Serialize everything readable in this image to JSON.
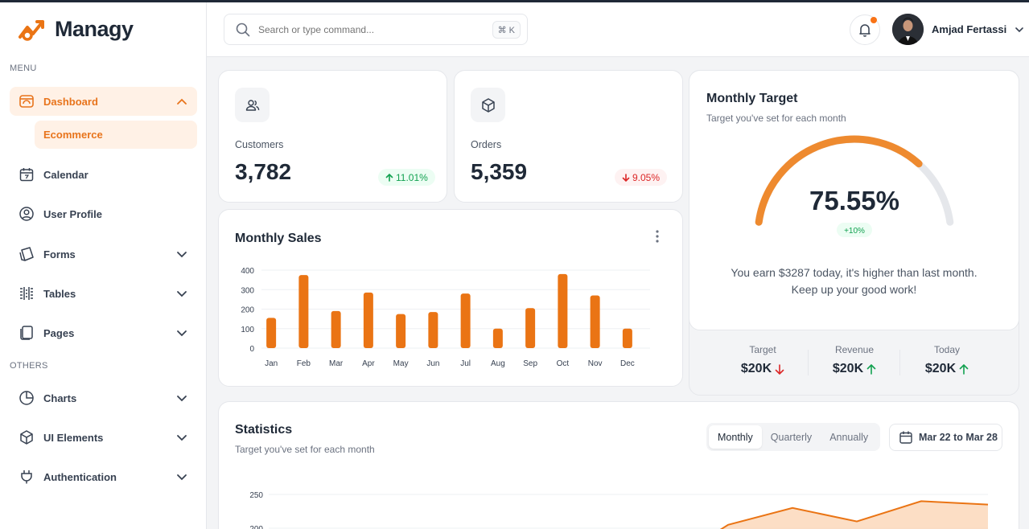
{
  "app": {
    "name": "Managy"
  },
  "sidebar": {
    "menu_label": "MENU",
    "others_label": "OTHERS",
    "dashboard": {
      "label": "Dashboard",
      "sub": "Ecommerce"
    },
    "items": [
      {
        "label": "Calendar"
      },
      {
        "label": "User Profile"
      },
      {
        "label": "Forms"
      },
      {
        "label": "Tables"
      },
      {
        "label": "Pages"
      }
    ],
    "others": [
      {
        "label": "Charts"
      },
      {
        "label": "UI Elements"
      },
      {
        "label": "Authentication"
      }
    ],
    "accent": "#e8741c"
  },
  "header": {
    "search_placeholder": "Search or type command...",
    "shortcut": "⌘ K",
    "user_name": "Amjad Fertassi"
  },
  "metrics": {
    "customers": {
      "label": "Customers",
      "value": "3,782",
      "change": "11.01%",
      "trend": "up"
    },
    "orders": {
      "label": "Orders",
      "value": "5,359",
      "change": "9.05%",
      "trend": "down"
    }
  },
  "monthly_sales": {
    "title": "Monthly Sales",
    "chart_data": {
      "type": "bar",
      "categories": [
        "Jan",
        "Feb",
        "Mar",
        "Apr",
        "May",
        "Jun",
        "Jul",
        "Aug",
        "Sep",
        "Oct",
        "Nov",
        "Dec"
      ],
      "values": [
        155,
        375,
        190,
        285,
        175,
        185,
        280,
        100,
        205,
        380,
        270,
        100
      ],
      "yticks": [
        0,
        100,
        200,
        300,
        400
      ],
      "ylim": [
        0,
        400
      ],
      "grid": true,
      "color": "#ea7414"
    }
  },
  "monthly_target": {
    "title": "Monthly Target",
    "subtitle": "Target you've set for each month",
    "percent_label": "75.55%",
    "percent": 75.55,
    "delta": "+10%",
    "message_line1": "You earn $3287 today, it's higher than last month.",
    "message_line2": "Keep up your good work!",
    "stats": [
      {
        "label": "Target",
        "value": "$20K",
        "trend": "down"
      },
      {
        "label": "Revenue",
        "value": "$20K",
        "trend": "up"
      },
      {
        "label": "Today",
        "value": "$20K",
        "trend": "up"
      }
    ]
  },
  "statistics": {
    "title": "Statistics",
    "subtitle": "Target you've set for each month",
    "tabs": [
      "Monthly",
      "Quarterly",
      "Annually"
    ],
    "selected_tab": "Monthly",
    "date_range": "Mar 22 to Mar 28",
    "chart_data": {
      "type": "area",
      "yticks": [
        250,
        200
      ],
      "series": [
        {
          "values": [
            180,
            205,
            230,
            210,
            240,
            235
          ]
        }
      ],
      "color": "#ea7414"
    }
  }
}
